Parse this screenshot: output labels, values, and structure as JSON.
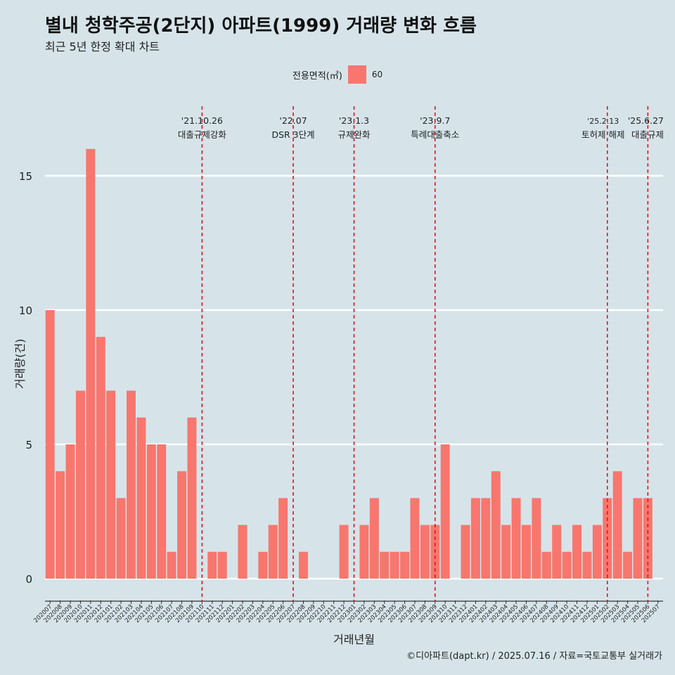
{
  "header": {
    "title": "별내 청학주공(2단지) 아파트(1999) 거래량 변화 흐름",
    "subtitle": "최근 5년 한정 확대 차트"
  },
  "legend": {
    "title": "전용면적(㎡)",
    "items": [
      {
        "label": "60",
        "color": "#f8766d"
      }
    ]
  },
  "caption": "©디아파트(dapt.kr) / 2025.07.16 / 자료=국토교통부 실거래가",
  "colors": {
    "background": "#d6e4ea",
    "bar": "#f8766d",
    "event_line": "#e8101a",
    "grid": "#ffffff"
  },
  "chart_data": {
    "type": "bar",
    "xlabel": "거래년월",
    "ylabel": "거래량(건)",
    "ylim": [
      0,
      17
    ],
    "yticks": [
      0,
      5,
      10,
      15
    ],
    "grid": true,
    "legend_position": "top",
    "categories": [
      "202007",
      "202008",
      "202009",
      "202010",
      "202011",
      "202012",
      "202101",
      "202102",
      "202103",
      "202104",
      "202105",
      "202106",
      "202107",
      "202108",
      "202109",
      "202110",
      "202111",
      "202112",
      "202201",
      "202202",
      "202203",
      "202204",
      "202205",
      "202206",
      "202207",
      "202208",
      "202209",
      "202210",
      "202211",
      "202212",
      "202301",
      "202302",
      "202303",
      "202304",
      "202305",
      "202306",
      "202307",
      "202308",
      "202309",
      "202310",
      "202311",
      "202312",
      "202401",
      "202402",
      "202403",
      "202404",
      "202405",
      "202406",
      "202407",
      "202408",
      "202409",
      "202410",
      "202411",
      "202412",
      "202501",
      "202502",
      "202503",
      "202504",
      "202505",
      "202506",
      "202507"
    ],
    "series": [
      {
        "name": "60",
        "values": [
          10,
          4,
          5,
          7,
          16,
          9,
          7,
          3,
          7,
          6,
          5,
          5,
          1,
          4,
          6,
          0,
          1,
          1,
          0,
          2,
          0,
          1,
          2,
          3,
          0,
          1,
          0,
          0,
          0,
          2,
          0,
          2,
          3,
          1,
          1,
          1,
          3,
          2,
          2,
          5,
          0,
          2,
          3,
          3,
          4,
          2,
          3,
          2,
          3,
          1,
          2,
          1,
          2,
          1,
          2,
          3,
          4,
          1,
          3,
          3,
          0
        ]
      }
    ],
    "events": [
      {
        "date": "'21.10.26",
        "label": "대출규제강화",
        "category": "202110"
      },
      {
        "date": "'22.07",
        "label": "DSR 3단계",
        "category": "202207"
      },
      {
        "date": "'23.1.3",
        "label": "규제완화",
        "category": "202301"
      },
      {
        "date": "'23.9.7",
        "label": "특례대출축소",
        "category": "202309"
      },
      {
        "date": "'25.2.13",
        "label": "토허제 해제",
        "category": "202502"
      },
      {
        "date": "'25.6.27",
        "label": "대출규제",
        "category": "202506"
      }
    ]
  }
}
